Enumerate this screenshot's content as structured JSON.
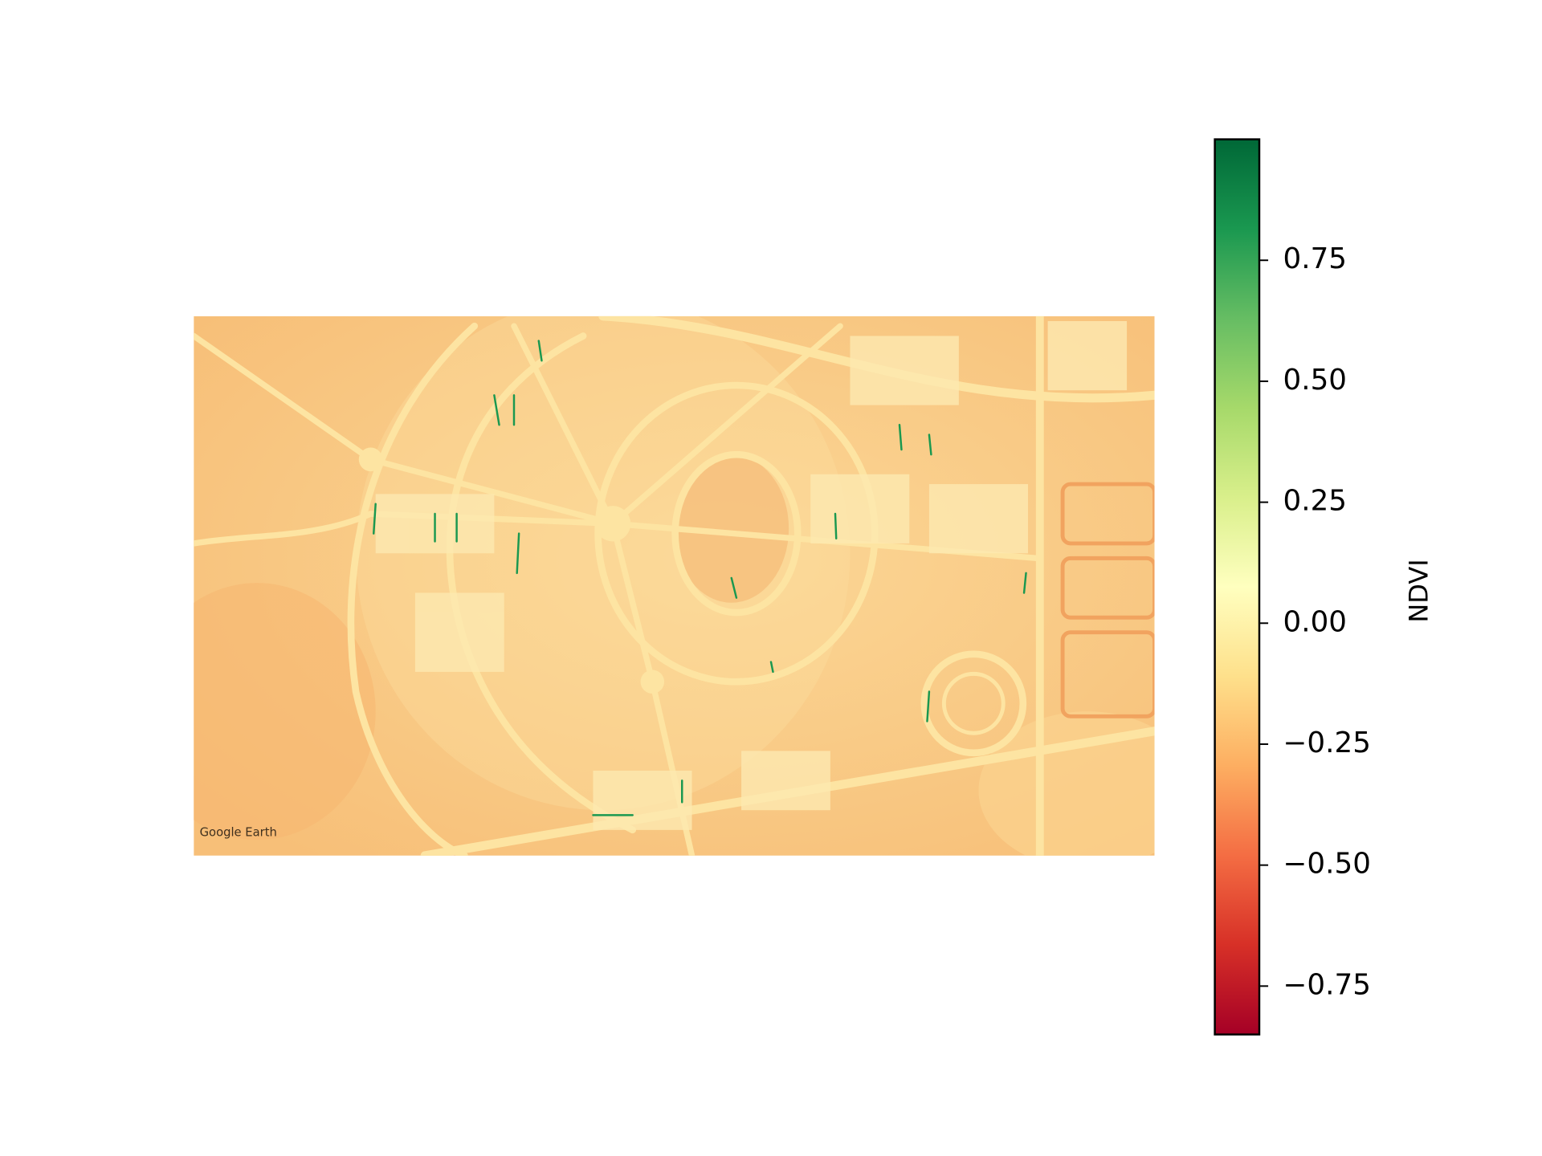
{
  "chart_data": {
    "type": "image",
    "watermark": "Google Earth",
    "colorbar_label": "NDVI",
    "colormap": "RdYlGn",
    "clim": [
      -0.85,
      1.0
    ],
    "cticks": [
      {
        "value": -0.75,
        "label": "−0.75"
      },
      {
        "value": -0.5,
        "label": "−0.50"
      },
      {
        "value": -0.25,
        "label": "−0.25"
      },
      {
        "value": 0.0,
        "label": "0.00"
      },
      0.25,
      {
        "value": 0.5,
        "label": "0.50"
      },
      0.75
    ]
  }
}
